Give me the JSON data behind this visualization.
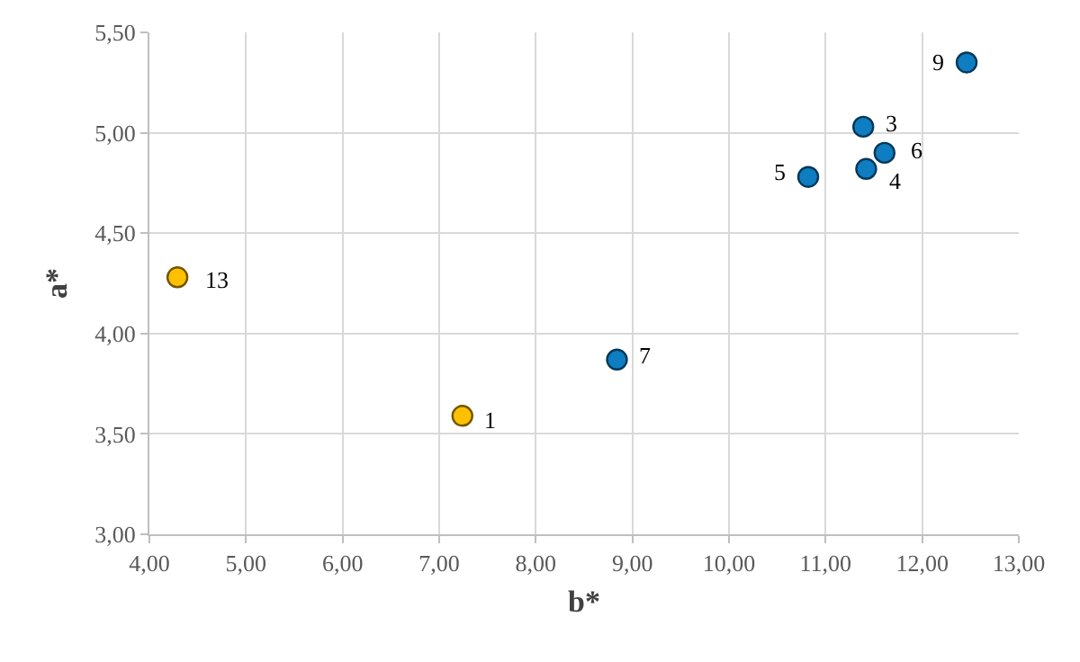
{
  "chart_data": {
    "type": "scatter",
    "xlabel": "b*",
    "ylabel": "a*",
    "series": [
      {
        "color": "#ffc000",
        "x": [
          7.24,
          4.29
        ],
        "values": [
          3.59,
          4.28
        ]
      },
      {
        "color": "#0e7dc2",
        "x": [
          11.39,
          11.42,
          10.82,
          11.61,
          8.84,
          12.46
        ],
        "values": [
          5.03,
          4.82,
          4.78,
          4.9,
          3.87,
          5.35
        ]
      }
    ],
    "annotations": [
      {
        "text": "1",
        "x": 7.24,
        "y": 3.59
      },
      {
        "text": "13",
        "x": 4.29,
        "y": 4.28
      },
      {
        "text": "3",
        "x": 11.39,
        "y": 5.03
      },
      {
        "text": "4",
        "x": 11.42,
        "y": 4.82
      },
      {
        "text": "5",
        "x": 10.82,
        "y": 4.78
      },
      {
        "text": "6",
        "x": 11.61,
        "y": 4.9
      },
      {
        "text": "7",
        "x": 8.84,
        "y": 3.87
      },
      {
        "text": "9",
        "x": 12.46,
        "y": 5.35
      }
    ],
    "xlim": [
      4,
      13
    ],
    "xticks": [
      {
        "value": 4,
        "label": "4,00"
      },
      {
        "value": 5,
        "label": "5,00"
      },
      {
        "value": 6,
        "label": "6,00"
      },
      {
        "value": 7,
        "label": "7,00"
      },
      {
        "value": 8,
        "label": "8,00"
      },
      {
        "value": 9,
        "label": "9,00"
      },
      {
        "value": 10,
        "label": "10,00"
      },
      {
        "value": 11,
        "label": "11,00"
      },
      {
        "value": 12,
        "label": "12,00"
      },
      {
        "value": 13,
        "label": "13,00"
      }
    ],
    "ylim": [
      3,
      5.5
    ],
    "yticks": [
      {
        "value": 3,
        "label": "3,00"
      },
      {
        "value": 3.5,
        "label": "3,50"
      },
      {
        "value": 4,
        "label": "4,00"
      },
      {
        "value": 4.5,
        "label": "4,50"
      },
      {
        "value": 5,
        "label": "5,00"
      },
      {
        "value": 5.5,
        "label": "5,50"
      }
    ],
    "grid": true,
    "marker": "circle"
  }
}
